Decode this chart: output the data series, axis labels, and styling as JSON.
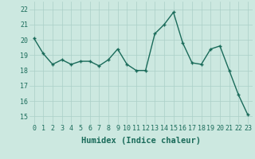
{
  "x": [
    0,
    1,
    2,
    3,
    4,
    5,
    6,
    7,
    8,
    9,
    10,
    11,
    12,
    13,
    14,
    15,
    16,
    17,
    18,
    19,
    20,
    21,
    22,
    23
  ],
  "y": [
    20.1,
    19.1,
    18.4,
    18.7,
    18.4,
    18.6,
    18.6,
    18.3,
    18.7,
    19.4,
    18.4,
    18.0,
    18.0,
    20.4,
    21.0,
    21.8,
    19.8,
    18.5,
    18.4,
    19.4,
    19.6,
    18.0,
    16.4,
    15.1
  ],
  "line_color": "#1a6b5a",
  "marker": "+",
  "markersize": 3,
  "linewidth": 1.0,
  "bg_color": "#cce8e0",
  "grid_color": "#aacfc7",
  "xlabel": "Humidex (Indice chaleur)",
  "xlabel_fontsize": 7.5,
  "tick_fontsize": 6,
  "ylim": [
    14.5,
    22.5
  ],
  "yticks": [
    15,
    16,
    17,
    18,
    19,
    20,
    21,
    22
  ],
  "xticks": [
    0,
    1,
    2,
    3,
    4,
    5,
    6,
    7,
    8,
    9,
    10,
    11,
    12,
    13,
    14,
    15,
    16,
    17,
    18,
    19,
    20,
    21,
    22,
    23
  ]
}
